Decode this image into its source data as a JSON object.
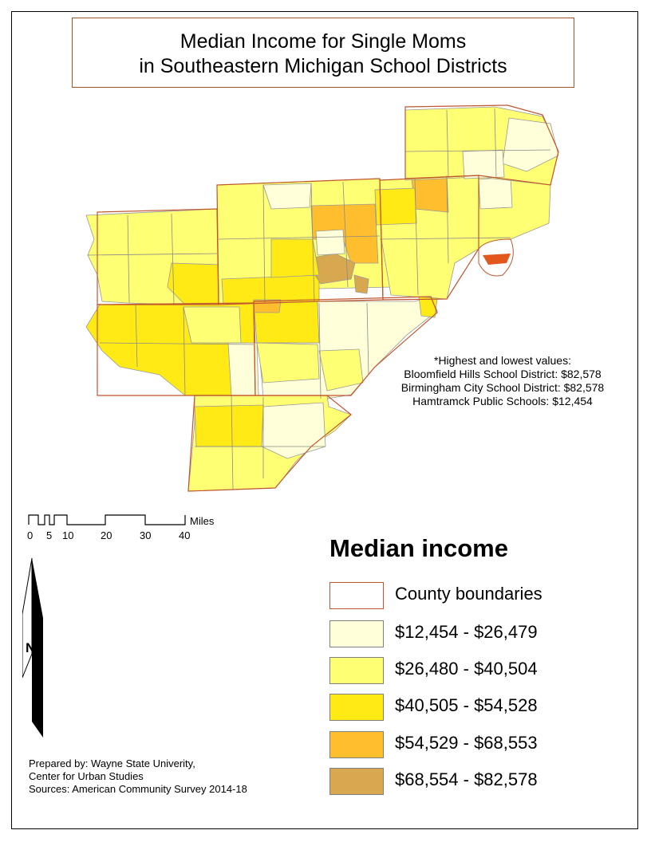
{
  "title": {
    "line1": "Median Income for Single Moms",
    "line2": "in Southeastern Michigan School Districts"
  },
  "annotation": {
    "heading": "*Highest and lowest values:",
    "items": [
      "Bloomfield Hills School District: $82,578",
      "Birmingham City School District: $82,578",
      "Hamtramck Public Schools: $12,454"
    ]
  },
  "scale_bar": {
    "unit": "Miles",
    "ticks": [
      "0",
      "5",
      "10",
      "20",
      "30",
      "40"
    ]
  },
  "north_arrow": {
    "label": "N"
  },
  "legend": {
    "title": "Median income",
    "boundary": {
      "label": "County boundaries",
      "color": "#c0562f"
    },
    "classes": [
      {
        "label": "$12,454 - $26,479",
        "color": "#ffffd9"
      },
      {
        "label": "$26,480 - $40,504",
        "color": "#ffff73"
      },
      {
        "label": "$40,505 - $54,528",
        "color": "#ffea16"
      },
      {
        "label": "$54,529 - $68,553",
        "color": "#ffbe2e"
      },
      {
        "label": "$68,554 - $82,578",
        "color": "#d7a84f"
      }
    ]
  },
  "credits": {
    "line1": "Prepared by: Wayne State Univerity,",
    "line2": "Center for Urban Studies",
    "line3": "Sources: American Community Survey 2014-18"
  }
}
